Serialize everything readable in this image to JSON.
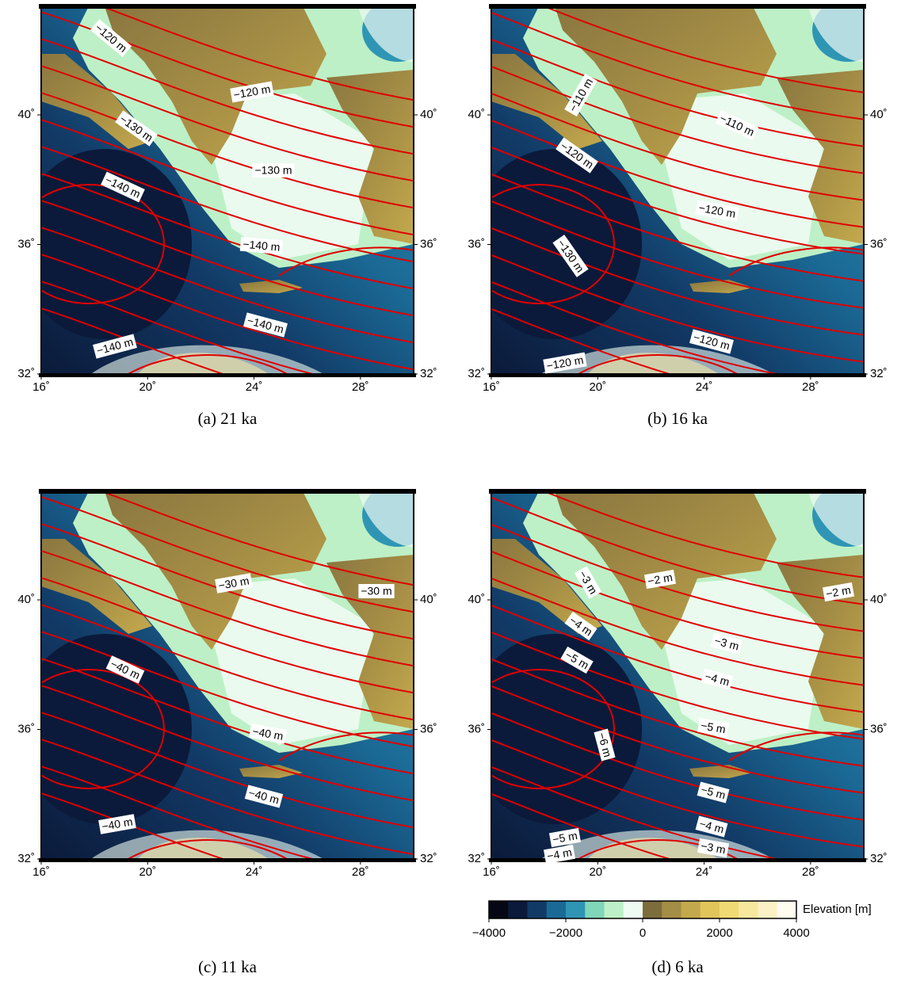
{
  "panels": [
    {
      "caption": "(a) 21 ka",
      "contour_labels": [
        "−120 m",
        "−120 m",
        "−130 m",
        "−130 m",
        "−140 m",
        "−140 m",
        "−140 m",
        "−140 m"
      ]
    },
    {
      "caption": "(b) 16 ka",
      "contour_labels": [
        "−110 m",
        "−110 m",
        "−120 m",
        "−120 m",
        "−130 m",
        "−120 m",
        "−120 m"
      ]
    },
    {
      "caption": "(c) 11 ka",
      "contour_labels": [
        "−30 m",
        "−30 m",
        "−40 m",
        "−40 m",
        "−40 m",
        "−40 m"
      ]
    },
    {
      "caption": "(d) 6 ka",
      "contour_labels": [
        "−3 m",
        "−2 m",
        "−2 m",
        "−4 m",
        "−3 m",
        "−5 m",
        "−4 m",
        "−6 m",
        "−5 m",
        "−5 m",
        "−5 m",
        "−4 m",
        "−4 m",
        "−3 m"
      ]
    }
  ],
  "longitude_ticks": [
    {
      "value": 16,
      "label": "16˚"
    },
    {
      "value": 20,
      "label": "20˚"
    },
    {
      "value": 24,
      "label": "24˚"
    },
    {
      "value": 28,
      "label": "28˚"
    }
  ],
  "latitude_ticks": [
    {
      "value": 32,
      "label": "32˚"
    },
    {
      "value": 36,
      "label": "36˚"
    },
    {
      "value": 40,
      "label": "40˚"
    }
  ],
  "colorbar": {
    "label": "Elevation [m]",
    "colors": [
      "#050814",
      "#0b1a3a",
      "#123a66",
      "#1b6a96",
      "#2f95b4",
      "#7fd6b8",
      "#bdf0c6",
      "#eefbf2",
      "#7d6d3c",
      "#a48d45",
      "#c4a94c",
      "#e1c55a",
      "#f0da74",
      "#f7e89e",
      "#fbf1c4",
      "#fffbee"
    ],
    "ticks": [
      {
        "value": -4000,
        "label": "−4000"
      },
      {
        "value": -2000,
        "label": "−2000"
      },
      {
        "value": 0,
        "label": "0"
      },
      {
        "value": 2000,
        "label": "2000"
      },
      {
        "value": 4000,
        "label": "4000"
      }
    ]
  }
}
